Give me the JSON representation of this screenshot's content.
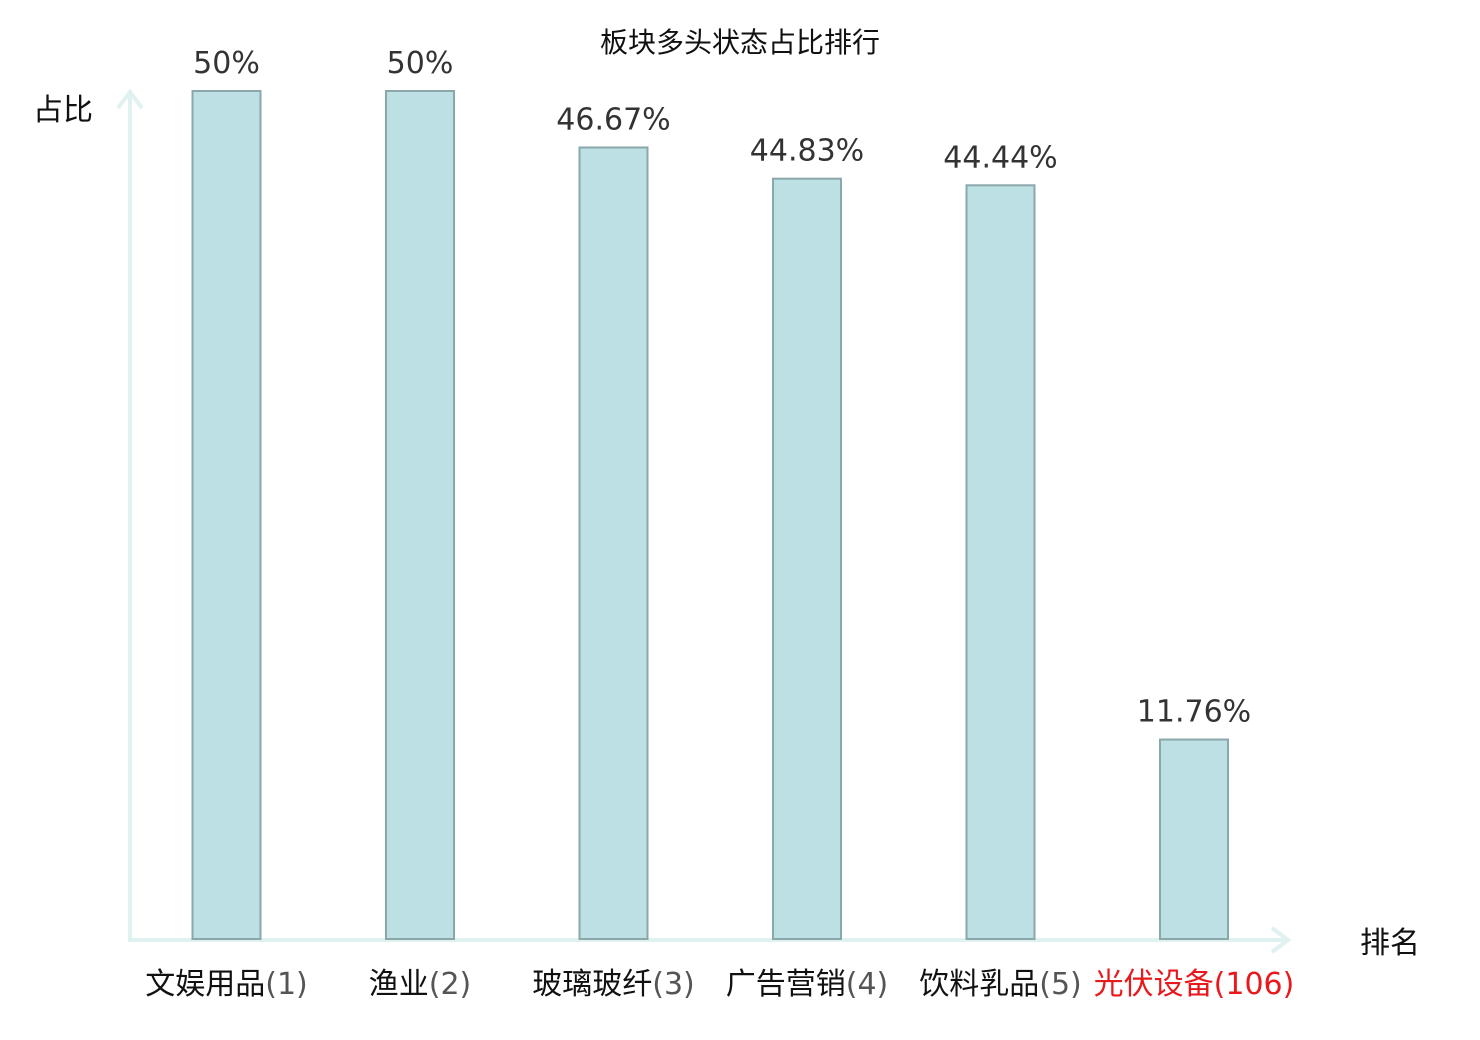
{
  "chart_data": {
    "type": "bar",
    "title": "板块多头状态占比排行",
    "xlabel": "排名",
    "ylabel": "占比",
    "ylim": [
      0,
      50
    ],
    "grid": false,
    "categories": [
      {
        "name": "文娱用品",
        "rank": "(1)"
      },
      {
        "name": "渔业",
        "rank": "(2)"
      },
      {
        "name": "玻璃玻纤",
        "rank": "(3)"
      },
      {
        "name": "广告营销",
        "rank": "(4)"
      },
      {
        "name": "饮料乳品",
        "rank": "(5)"
      },
      {
        "name": "光伏设备",
        "rank": "(106)"
      }
    ],
    "values": [
      50,
      50,
      46.67,
      44.83,
      44.44,
      11.76
    ],
    "value_labels": [
      "50%",
      "50%",
      "46.67%",
      "44.83%",
      "44.44%",
      "11.76%"
    ],
    "highlight_index": 5,
    "colors": {
      "bar_fill": "#bce0e3",
      "bar_stroke": "#8aa7aa",
      "axis": "#dff2f0",
      "highlight": "#e8191c"
    }
  }
}
